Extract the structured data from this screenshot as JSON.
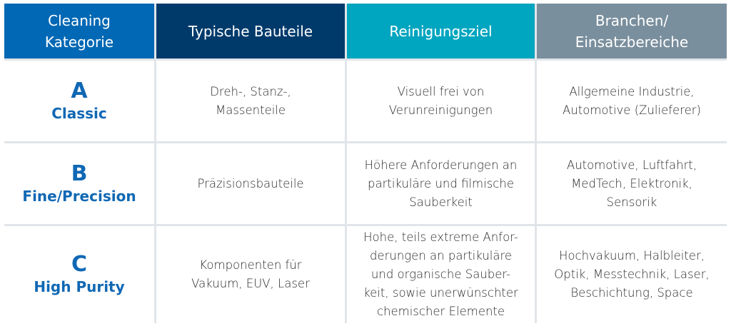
{
  "colors": {
    "header_1": "#0068b4",
    "header_2": "#003a6b",
    "header_3": "#00a5bf",
    "header_4": "#7a8f9d",
    "category_text": "#1068b4",
    "grid": "#e1e5e9"
  },
  "headers": [
    {
      "lines": [
        "Cleaning",
        "Kategorie"
      ]
    },
    {
      "lines": [
        "Typische Bauteile"
      ]
    },
    {
      "lines": [
        "Reinigungsziel"
      ]
    },
    {
      "lines": [
        "Branchen/",
        "Einsatzbereiche"
      ]
    }
  ],
  "rows": [
    {
      "letter": "A",
      "name": "Classic",
      "parts": [
        "Dreh-, Stanz-,",
        "Massenteile"
      ],
      "goal": [
        "Visuell frei von",
        "Verunreinigungen"
      ],
      "industries": [
        "Allgemeine Industrie,",
        "Automotive (Zulieferer)"
      ]
    },
    {
      "letter": "B",
      "name": "Fine/Precision",
      "parts": [
        "Präzisionsbauteile"
      ],
      "goal": [
        "Höhere Anforderungen an",
        "partikuläre und filmische",
        "Sauberkeit"
      ],
      "industries": [
        "Automotive, Luftfahrt,",
        "MedTech, Elektronik,",
        "Sensorik"
      ]
    },
    {
      "letter": "C",
      "name": "High Purity",
      "parts": [
        "Komponenten für",
        "Vakuum, EUV, Laser"
      ],
      "goal": [
        "Hohe, teils extreme Anfor-",
        "derungen an partikuläre",
        "und organische Sauber-",
        "keit, sowie unerwünschter",
        "chemischer Elemente"
      ],
      "industries": [
        "Hochvakuum, Halbleiter,",
        "Optik, Messtechnik, Laser,",
        "Beschichtung, Space"
      ]
    }
  ]
}
